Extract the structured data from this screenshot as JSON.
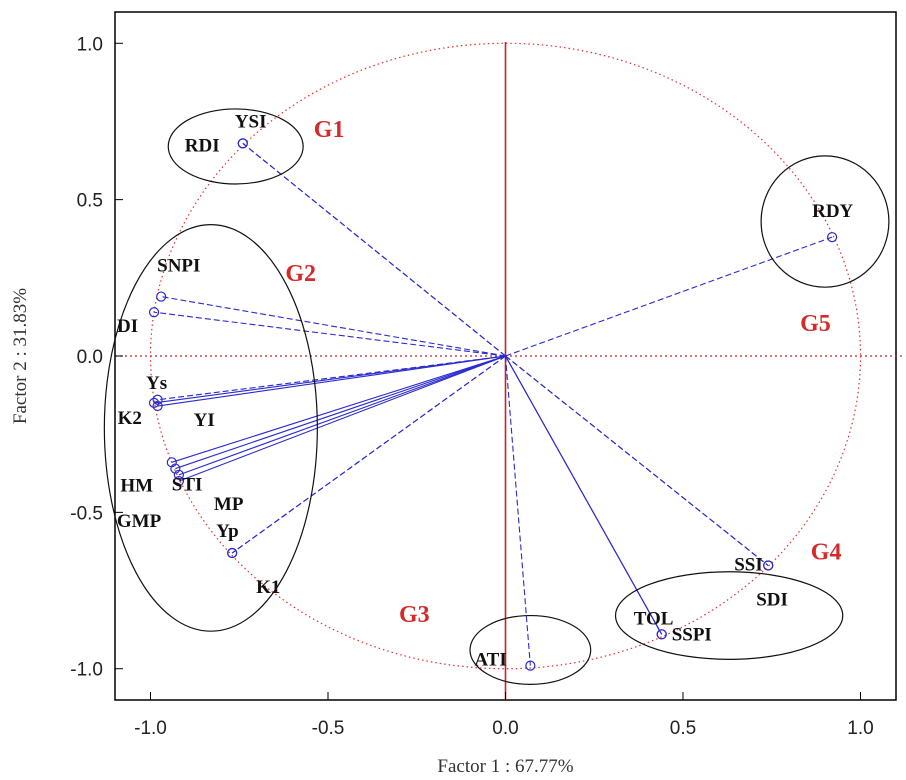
{
  "chart_data": {
    "type": "scatter",
    "subtype": "pca-loading-biplot",
    "xlabel": "Factor 1 : 67.77%",
    "ylabel": "Factor 2 : 31.83%",
    "xlim": [
      -1.1,
      1.1
    ],
    "ylim": [
      -1.1,
      1.1
    ],
    "xticks": [
      "-1.0",
      "-0.5",
      "0.0",
      "0.5",
      "1.0"
    ],
    "yticks": [
      "1.0",
      "0.5",
      "0.0",
      "-0.5",
      "-1.0"
    ],
    "unit_circle": true,
    "grid": false,
    "colors": {
      "vectors": "#2a2ad0",
      "circle": "#e03030",
      "axes_lines": "#cc2020",
      "group_ellipses": "#111111",
      "group_labels": "#d42a2a"
    },
    "points": [
      {
        "label": "YSI",
        "x": -0.74,
        "y": 0.68
      },
      {
        "label": "RDI",
        "x": -0.74,
        "y": 0.68
      },
      {
        "label": "RDY",
        "x": 0.92,
        "y": 0.38
      },
      {
        "label": "SNPI",
        "x": -0.97,
        "y": 0.19
      },
      {
        "label": "DI",
        "x": -0.99,
        "y": 0.14
      },
      {
        "label": "Ys",
        "x": -0.99,
        "y": -0.15
      },
      {
        "label": "YI",
        "x": -0.98,
        "y": -0.16
      },
      {
        "label": "K2",
        "x": -0.98,
        "y": -0.14
      },
      {
        "label": "STI",
        "x": -0.94,
        "y": -0.34
      },
      {
        "label": "HM",
        "x": -0.93,
        "y": -0.36
      },
      {
        "label": "MP",
        "x": -0.92,
        "y": -0.38
      },
      {
        "label": "GMP",
        "x": -0.92,
        "y": -0.4
      },
      {
        "label": "Yp",
        "x": -0.77,
        "y": -0.63
      },
      {
        "label": "K1",
        "x": -0.77,
        "y": -0.63
      },
      {
        "label": "ATI",
        "x": 0.07,
        "y": -0.99
      },
      {
        "label": "TOL",
        "x": 0.44,
        "y": -0.89
      },
      {
        "label": "SSPI",
        "x": 0.44,
        "y": -0.89
      },
      {
        "label": "SSI",
        "x": 0.74,
        "y": -0.67
      },
      {
        "label": "SDI",
        "x": 0.74,
        "y": -0.67
      }
    ],
    "groups": [
      {
        "name": "G1",
        "cx": -0.76,
        "cy": 0.67,
        "rx": 0.19,
        "ry": 0.12
      },
      {
        "name": "G2",
        "cx": -0.83,
        "cy": -0.23,
        "rx": 0.3,
        "ry": 0.65
      },
      {
        "name": "G3",
        "cx": 0.07,
        "cy": -0.94,
        "rx": 0.17,
        "ry": 0.11
      },
      {
        "name": "G4",
        "cx": 0.63,
        "cy": -0.83,
        "rx": 0.32,
        "ry": 0.14
      },
      {
        "name": "G5",
        "cx": 0.9,
        "cy": 0.43,
        "rx": 0.18,
        "ry": 0.21
      }
    ]
  }
}
